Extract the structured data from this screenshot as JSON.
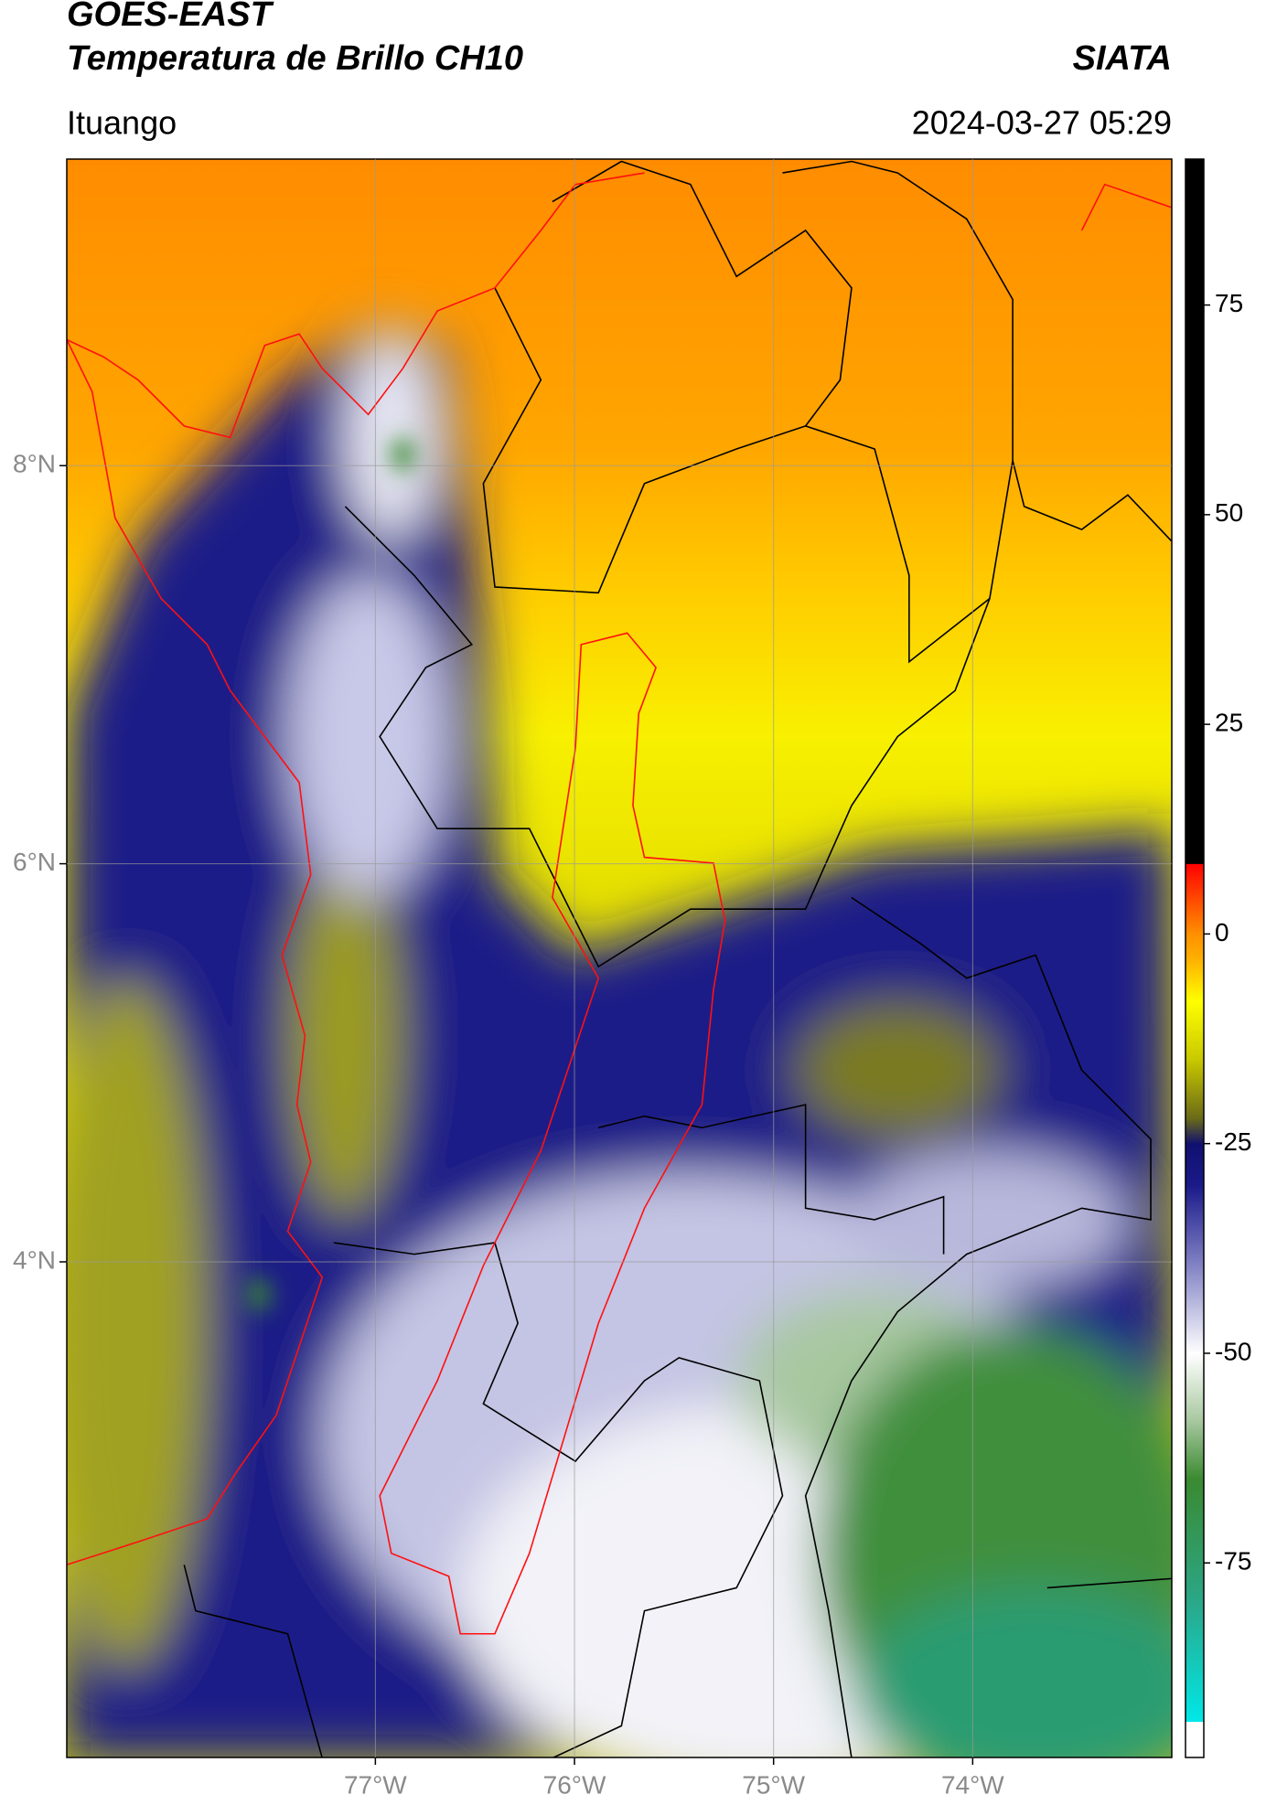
{
  "header": {
    "title": "GOES-EAST",
    "subtitle": "Temperatura de Brillo CH10",
    "source": "SIATA",
    "location": "Ituango",
    "datetime": "2024-03-27 05:29"
  },
  "map": {
    "xlim": [
      -78.55,
      -73.0
    ],
    "ylim": [
      1.51,
      9.54
    ],
    "grid": true,
    "xticks": [
      {
        "value": -77,
        "label": "77°W"
      },
      {
        "value": -76,
        "label": "76°W"
      },
      {
        "value": -75,
        "label": "75°W"
      },
      {
        "value": -74,
        "label": "74°W"
      }
    ],
    "yticks": [
      {
        "value": 8,
        "label": "8°N"
      },
      {
        "value": 6,
        "label": "6°N"
      },
      {
        "value": 4,
        "label": "4°N"
      }
    ]
  },
  "colorbar": {
    "clim": [
      -98.2,
      92.4
    ],
    "ticks": [
      75,
      50,
      25,
      0,
      -25,
      -50,
      -75
    ],
    "colormap": [
      {
        "value": -98.2,
        "color": "#ffffff"
      },
      {
        "value": -93.9,
        "color": "#ffffff"
      },
      {
        "value": -93.9,
        "color": "#00e8e8"
      },
      {
        "value": -80,
        "color": "#2aa88a"
      },
      {
        "value": -65,
        "color": "#3a8a30"
      },
      {
        "value": -58,
        "color": "#a8c8a0"
      },
      {
        "value": -50,
        "color": "#ffffff"
      },
      {
        "value": -40,
        "color": "#8888c8"
      },
      {
        "value": -30,
        "color": "#1a1a8a"
      },
      {
        "value": -25,
        "color": "#101070"
      },
      {
        "value": -22,
        "color": "#6a6a18"
      },
      {
        "value": -15,
        "color": "#c8c800"
      },
      {
        "value": -8,
        "color": "#ffff00"
      },
      {
        "value": -3,
        "color": "#ffb000"
      },
      {
        "value": 0,
        "color": "#ff9000"
      },
      {
        "value": 8.4,
        "color": "#ff0000"
      },
      {
        "value": 8.4,
        "color": "#000000"
      },
      {
        "value": 92.4,
        "color": "#000000"
      }
    ]
  }
}
